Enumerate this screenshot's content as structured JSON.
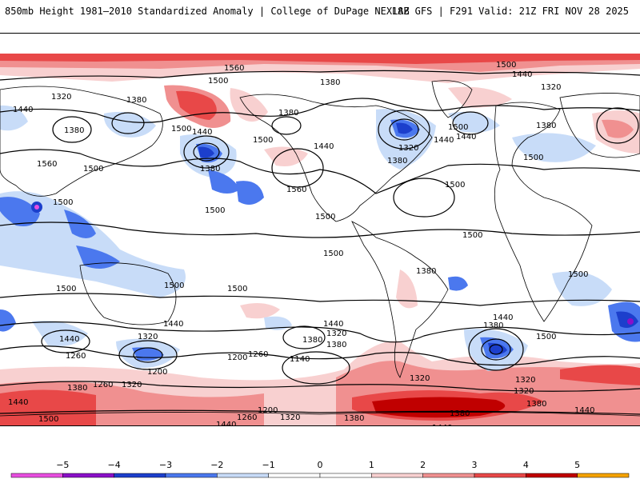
{
  "header": {
    "title": "850mb Height 1981–2010 Standardized Anomaly | College of DuPage NEXLAB",
    "run_info": "18Z GFS | F291 Valid: 21Z FRI NOV 28 2025"
  },
  "map": {
    "contour_labels": [
      "1560",
      "1500",
      "1380",
      "1500",
      "1440",
      "1320",
      "1380",
      "1440",
      "1500",
      "1440",
      "1380",
      "1500",
      "1380",
      "1440",
      "1320",
      "1380",
      "1320",
      "1440",
      "1500",
      "1380",
      "1560",
      "1500",
      "1500",
      "1440",
      "1380",
      "1500",
      "1500",
      "1560",
      "1500",
      "1500",
      "1500",
      "1500",
      "1380",
      "1500",
      "1500",
      "1500",
      "1500",
      "1440",
      "1440",
      "1380",
      "1320",
      "1440",
      "1380",
      "1380",
      "1320",
      "1260",
      "1260",
      "1200",
      "1200",
      "1140",
      "1440",
      "1380",
      "1260",
      "1320",
      "1320",
      "1320",
      "1380",
      "1320",
      "1380",
      "1440",
      "1500",
      "1260",
      "1200",
      "1320",
      "1380",
      "1440",
      "1440",
      "1500",
      "1440"
    ],
    "colors": {
      "neg5": "#e84ee0",
      "neg4": "#8a10c8",
      "neg3": "#1c3fcc",
      "neg2": "#4b78ee",
      "neg1": "#c8dcf8",
      "pos1": "#f8d0d0",
      "pos2": "#f09090",
      "pos3": "#e84848",
      "pos4": "#c00000",
      "pos5": "#f5a300"
    }
  },
  "colorbar": {
    "ticks": [
      "−5",
      "−4",
      "−3",
      "−2",
      "−1",
      "0",
      "1",
      "2",
      "3",
      "4",
      "5"
    ],
    "colors": [
      "#e84ee0",
      "#8a10c8",
      "#1c3fcc",
      "#4b78ee",
      "#c8dcf8",
      "#ffffff",
      "#ffffff",
      "#f8d0d0",
      "#f09090",
      "#e84848",
      "#c00000",
      "#f5a300"
    ]
  }
}
